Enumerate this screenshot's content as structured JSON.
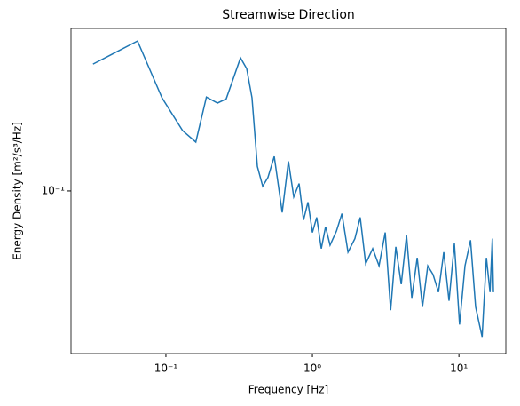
{
  "chart_data": {
    "type": "line",
    "title": "Streamwise Direction",
    "x_label": "Frequency [Hz]",
    "y_label": "Energy Density [m²/s³/Hz]",
    "x_scale": "log",
    "y_scale": "log",
    "xlim": [
      0.0225,
      20.9
    ],
    "ylim": [
      0.0185,
      0.54
    ],
    "xticks": [
      {
        "value": 0.1,
        "label": "10⁻¹"
      },
      {
        "value": 1,
        "label": "10⁰"
      },
      {
        "value": 10,
        "label": "10¹"
      }
    ],
    "yticks": [
      {
        "value": 0.1,
        "label": "10⁻¹"
      }
    ],
    "x": [
      0.0318,
      0.064,
      0.094,
      0.13,
      0.16,
      0.189,
      0.225,
      0.258,
      0.323,
      0.356,
      0.387,
      0.421,
      0.458,
      0.497,
      0.549,
      0.622,
      0.686,
      0.746,
      0.811,
      0.87,
      0.933,
      1.0,
      1.07,
      1.15,
      1.23,
      1.32,
      1.46,
      1.59,
      1.75,
      1.95,
      2.12,
      2.31,
      2.58,
      2.85,
      3.14,
      3.42,
      3.71,
      4.04,
      4.39,
      4.77,
      5.19,
      5.64,
      6.13,
      6.66,
      7.25,
      7.88,
      8.56,
      9.31,
      10.1,
      11.0,
      12.0,
      13.0,
      14.4,
      15.4,
      16.3,
      16.9,
      17.2
    ],
    "series": [
      {
        "color": "#1f77b4",
        "values": [
          0.373,
          0.474,
          0.263,
          0.187,
          0.166,
          0.265,
          0.249,
          0.26,
          0.398,
          0.356,
          0.263,
          0.129,
          0.105,
          0.115,
          0.143,
          0.08,
          0.136,
          0.094,
          0.108,
          0.074,
          0.089,
          0.065,
          0.076,
          0.055,
          0.069,
          0.057,
          0.066,
          0.079,
          0.053,
          0.061,
          0.076,
          0.047,
          0.055,
          0.046,
          0.065,
          0.029,
          0.056,
          0.038,
          0.063,
          0.033,
          0.05,
          0.03,
          0.046,
          0.042,
          0.035,
          0.053,
          0.032,
          0.058,
          0.025,
          0.046,
          0.06,
          0.03,
          0.022,
          0.05,
          0.035,
          0.061,
          0.035
        ]
      }
    ]
  }
}
